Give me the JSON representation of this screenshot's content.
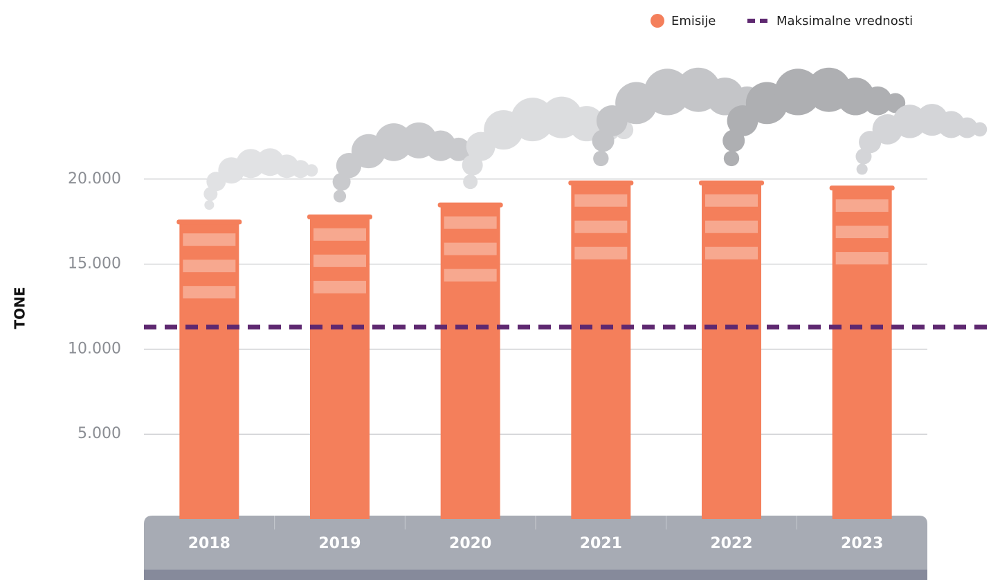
{
  "chart_data": {
    "type": "bar",
    "y_label": "TONE",
    "categories": [
      "2018",
      "2019",
      "2020",
      "2021",
      "2022",
      "2023"
    ],
    "series": [
      {
        "name": "Emisije",
        "color": "#f47f5b",
        "values": [
          17500,
          17800,
          18500,
          19800,
          19800,
          19500
        ]
      }
    ],
    "reference_line": {
      "name": "Maksimalne vrednosti",
      "color": "#5e2870",
      "value": 11300
    },
    "ylim": [
      0,
      25000
    ],
    "yticks": [
      {
        "value": 5000,
        "label": "5.000"
      },
      {
        "value": 10000,
        "label": "10.000"
      },
      {
        "value": 15000,
        "label": "15.000"
      },
      {
        "value": 20000,
        "label": "20.000"
      }
    ],
    "grid": true
  }
}
